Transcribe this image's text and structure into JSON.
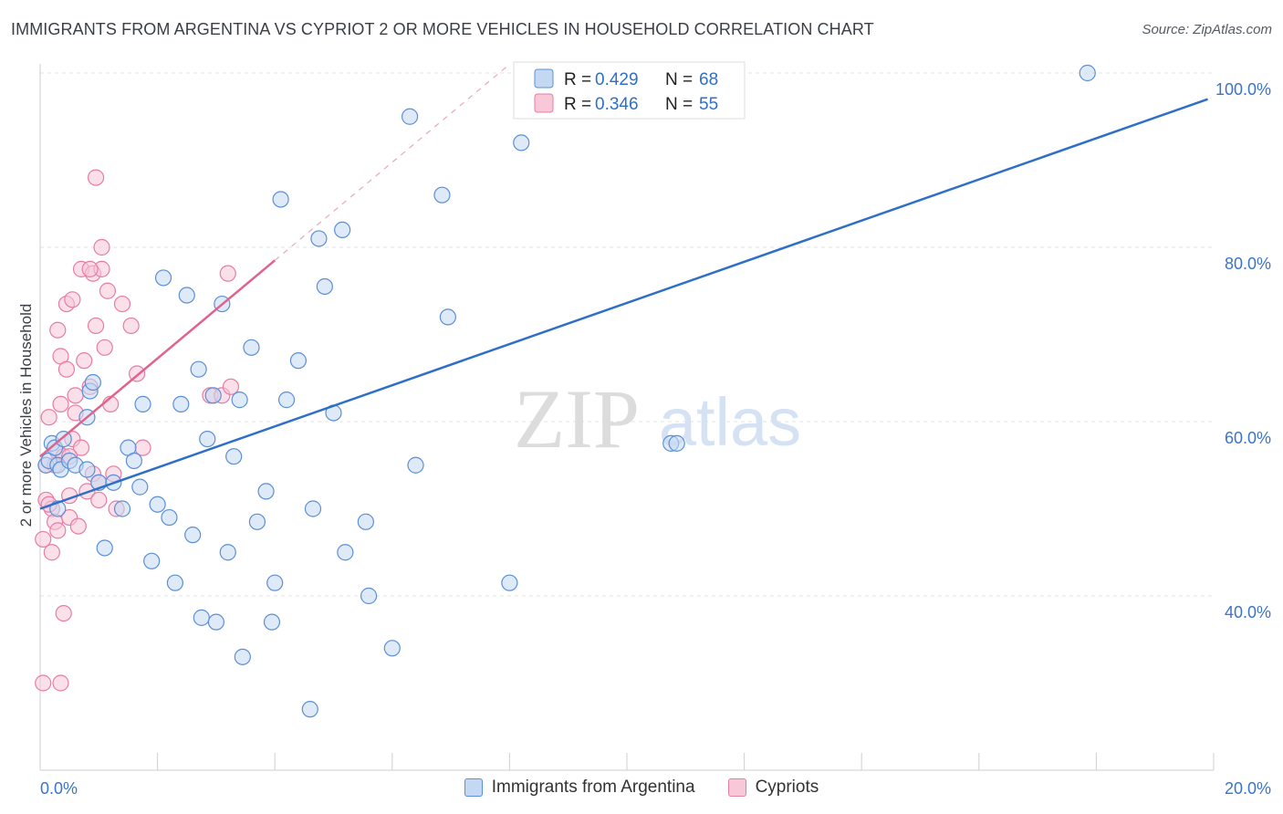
{
  "title": "IMMIGRANTS FROM ARGENTINA VS CYPRIOT 2 OR MORE VEHICLES IN HOUSEHOLD CORRELATION CHART",
  "source": "Source: ZipAtlas.com",
  "watermark": {
    "zip": "ZIP",
    "atlas": "atlas"
  },
  "colors": {
    "blue": "#5b8fd6",
    "blue_fill": "#c5d8f3",
    "blue_line": "#2f6fc7",
    "pink": "#e67da3",
    "pink_fill": "#f8c7d8",
    "pink_line": "#e0628f",
    "tick": "#3b74c9"
  },
  "legend": {
    "r_label": "R =",
    "n_label": "N =",
    "blue": {
      "r": "0.429",
      "n": "68"
    },
    "pink": {
      "r": "0.346",
      "n": "55"
    }
  },
  "chart_data": {
    "type": "scatter",
    "xlabel": "",
    "ylabel": "2 or more Vehicles in Household",
    "xlim": [
      0,
      20
    ],
    "ylim": [
      20,
      102
    ],
    "x_ticks": [
      "0.0%",
      "20.0%"
    ],
    "y_ticks": [
      {
        "v": 100,
        "label": "100.0%"
      },
      {
        "v": 80,
        "label": "80.0%"
      },
      {
        "v": 60,
        "label": "60.0%"
      },
      {
        "v": 40,
        "label": "40.0%"
      }
    ],
    "grid": true,
    "legend_position": "bottom",
    "series": [
      {
        "name": "Immigrants from Argentina",
        "trend": [
          [
            0.0,
            50.0
          ],
          [
            19.9,
            97.0
          ]
        ],
        "points": [
          [
            0.1,
            55
          ],
          [
            0.15,
            55.5
          ],
          [
            0.2,
            57.5
          ],
          [
            0.25,
            57
          ],
          [
            0.3,
            55
          ],
          [
            0.3,
            50
          ],
          [
            0.35,
            54.5
          ],
          [
            0.4,
            58
          ],
          [
            0.5,
            55.5
          ],
          [
            0.6,
            55
          ],
          [
            0.8,
            54.5
          ],
          [
            0.8,
            60.5
          ],
          [
            0.85,
            63.5
          ],
          [
            0.9,
            64.5
          ],
          [
            1.0,
            53
          ],
          [
            1.1,
            45.5
          ],
          [
            1.25,
            53
          ],
          [
            1.4,
            50
          ],
          [
            1.5,
            57
          ],
          [
            1.6,
            55.5
          ],
          [
            1.7,
            52.5
          ],
          [
            1.75,
            62
          ],
          [
            1.9,
            44
          ],
          [
            2.0,
            50.5
          ],
          [
            2.1,
            76.5
          ],
          [
            2.2,
            49
          ],
          [
            2.3,
            41.5
          ],
          [
            2.4,
            62
          ],
          [
            2.5,
            74.5
          ],
          [
            2.6,
            47
          ],
          [
            2.7,
            66
          ],
          [
            2.75,
            37.5
          ],
          [
            2.85,
            58
          ],
          [
            2.95,
            63
          ],
          [
            3.0,
            37
          ],
          [
            3.1,
            73.5
          ],
          [
            3.2,
            45
          ],
          [
            3.3,
            56
          ],
          [
            3.4,
            62.5
          ],
          [
            3.45,
            33
          ],
          [
            3.6,
            68.5
          ],
          [
            3.7,
            48.5
          ],
          [
            3.85,
            52
          ],
          [
            3.95,
            37
          ],
          [
            4.0,
            41.5
          ],
          [
            4.1,
            85.5
          ],
          [
            4.2,
            62.5
          ],
          [
            4.4,
            67
          ],
          [
            4.6,
            27
          ],
          [
            4.65,
            50
          ],
          [
            4.75,
            81
          ],
          [
            4.85,
            75.5
          ],
          [
            5.0,
            61
          ],
          [
            5.15,
            82
          ],
          [
            5.2,
            45
          ],
          [
            5.55,
            48.5
          ],
          [
            5.6,
            40
          ],
          [
            6.0,
            34
          ],
          [
            6.3,
            95
          ],
          [
            6.4,
            55
          ],
          [
            6.85,
            86
          ],
          [
            6.95,
            72
          ],
          [
            8.0,
            41.5
          ],
          [
            8.2,
            92
          ],
          [
            10.75,
            57.5
          ],
          [
            10.85,
            57.5
          ],
          [
            17.85,
            100
          ],
          [
            8.8,
            99.5
          ]
        ]
      },
      {
        "name": "Cypriots",
        "trend": [
          [
            0.0,
            56.0
          ],
          [
            4.0,
            78.5
          ]
        ],
        "trend_ext": [
          [
            4.0,
            78.5
          ],
          [
            8.0,
            101.0
          ]
        ],
        "points": [
          [
            0.05,
            30
          ],
          [
            0.05,
            46.5
          ],
          [
            0.1,
            55
          ],
          [
            0.1,
            51
          ],
          [
            0.15,
            60.5
          ],
          [
            0.2,
            50
          ],
          [
            0.2,
            45
          ],
          [
            0.25,
            48.5
          ],
          [
            0.3,
            56.5
          ],
          [
            0.3,
            70.5
          ],
          [
            0.3,
            47.5
          ],
          [
            0.35,
            62
          ],
          [
            0.35,
            67.5
          ],
          [
            0.35,
            30
          ],
          [
            0.4,
            38
          ],
          [
            0.4,
            56
          ],
          [
            0.45,
            66
          ],
          [
            0.45,
            73.5
          ],
          [
            0.5,
            51.5
          ],
          [
            0.5,
            49
          ],
          [
            0.55,
            74
          ],
          [
            0.55,
            58
          ],
          [
            0.6,
            63
          ],
          [
            0.6,
            61
          ],
          [
            0.7,
            57
          ],
          [
            0.7,
            77.5
          ],
          [
            0.75,
            67
          ],
          [
            0.8,
            52
          ],
          [
            0.85,
            64
          ],
          [
            0.9,
            54
          ],
          [
            0.9,
            77
          ],
          [
            0.95,
            88
          ],
          [
            0.95,
            71
          ],
          [
            1.0,
            53
          ],
          [
            1.0,
            51
          ],
          [
            1.05,
            77.5
          ],
          [
            1.05,
            80
          ],
          [
            1.1,
            68.5
          ],
          [
            1.15,
            75
          ],
          [
            1.2,
            62
          ],
          [
            1.25,
            54
          ],
          [
            1.3,
            50
          ],
          [
            1.4,
            73.5
          ],
          [
            1.55,
            71
          ],
          [
            1.65,
            65.5
          ],
          [
            1.75,
            57
          ],
          [
            2.9,
            63
          ],
          [
            3.1,
            63
          ],
          [
            3.2,
            77
          ],
          [
            3.25,
            64
          ],
          [
            0.25,
            55
          ],
          [
            0.65,
            48
          ],
          [
            0.15,
            50.5
          ],
          [
            0.5,
            56
          ],
          [
            0.85,
            77.5
          ]
        ]
      }
    ]
  },
  "bottom_legend": [
    "Immigrants from Argentina",
    "Cypriots"
  ]
}
